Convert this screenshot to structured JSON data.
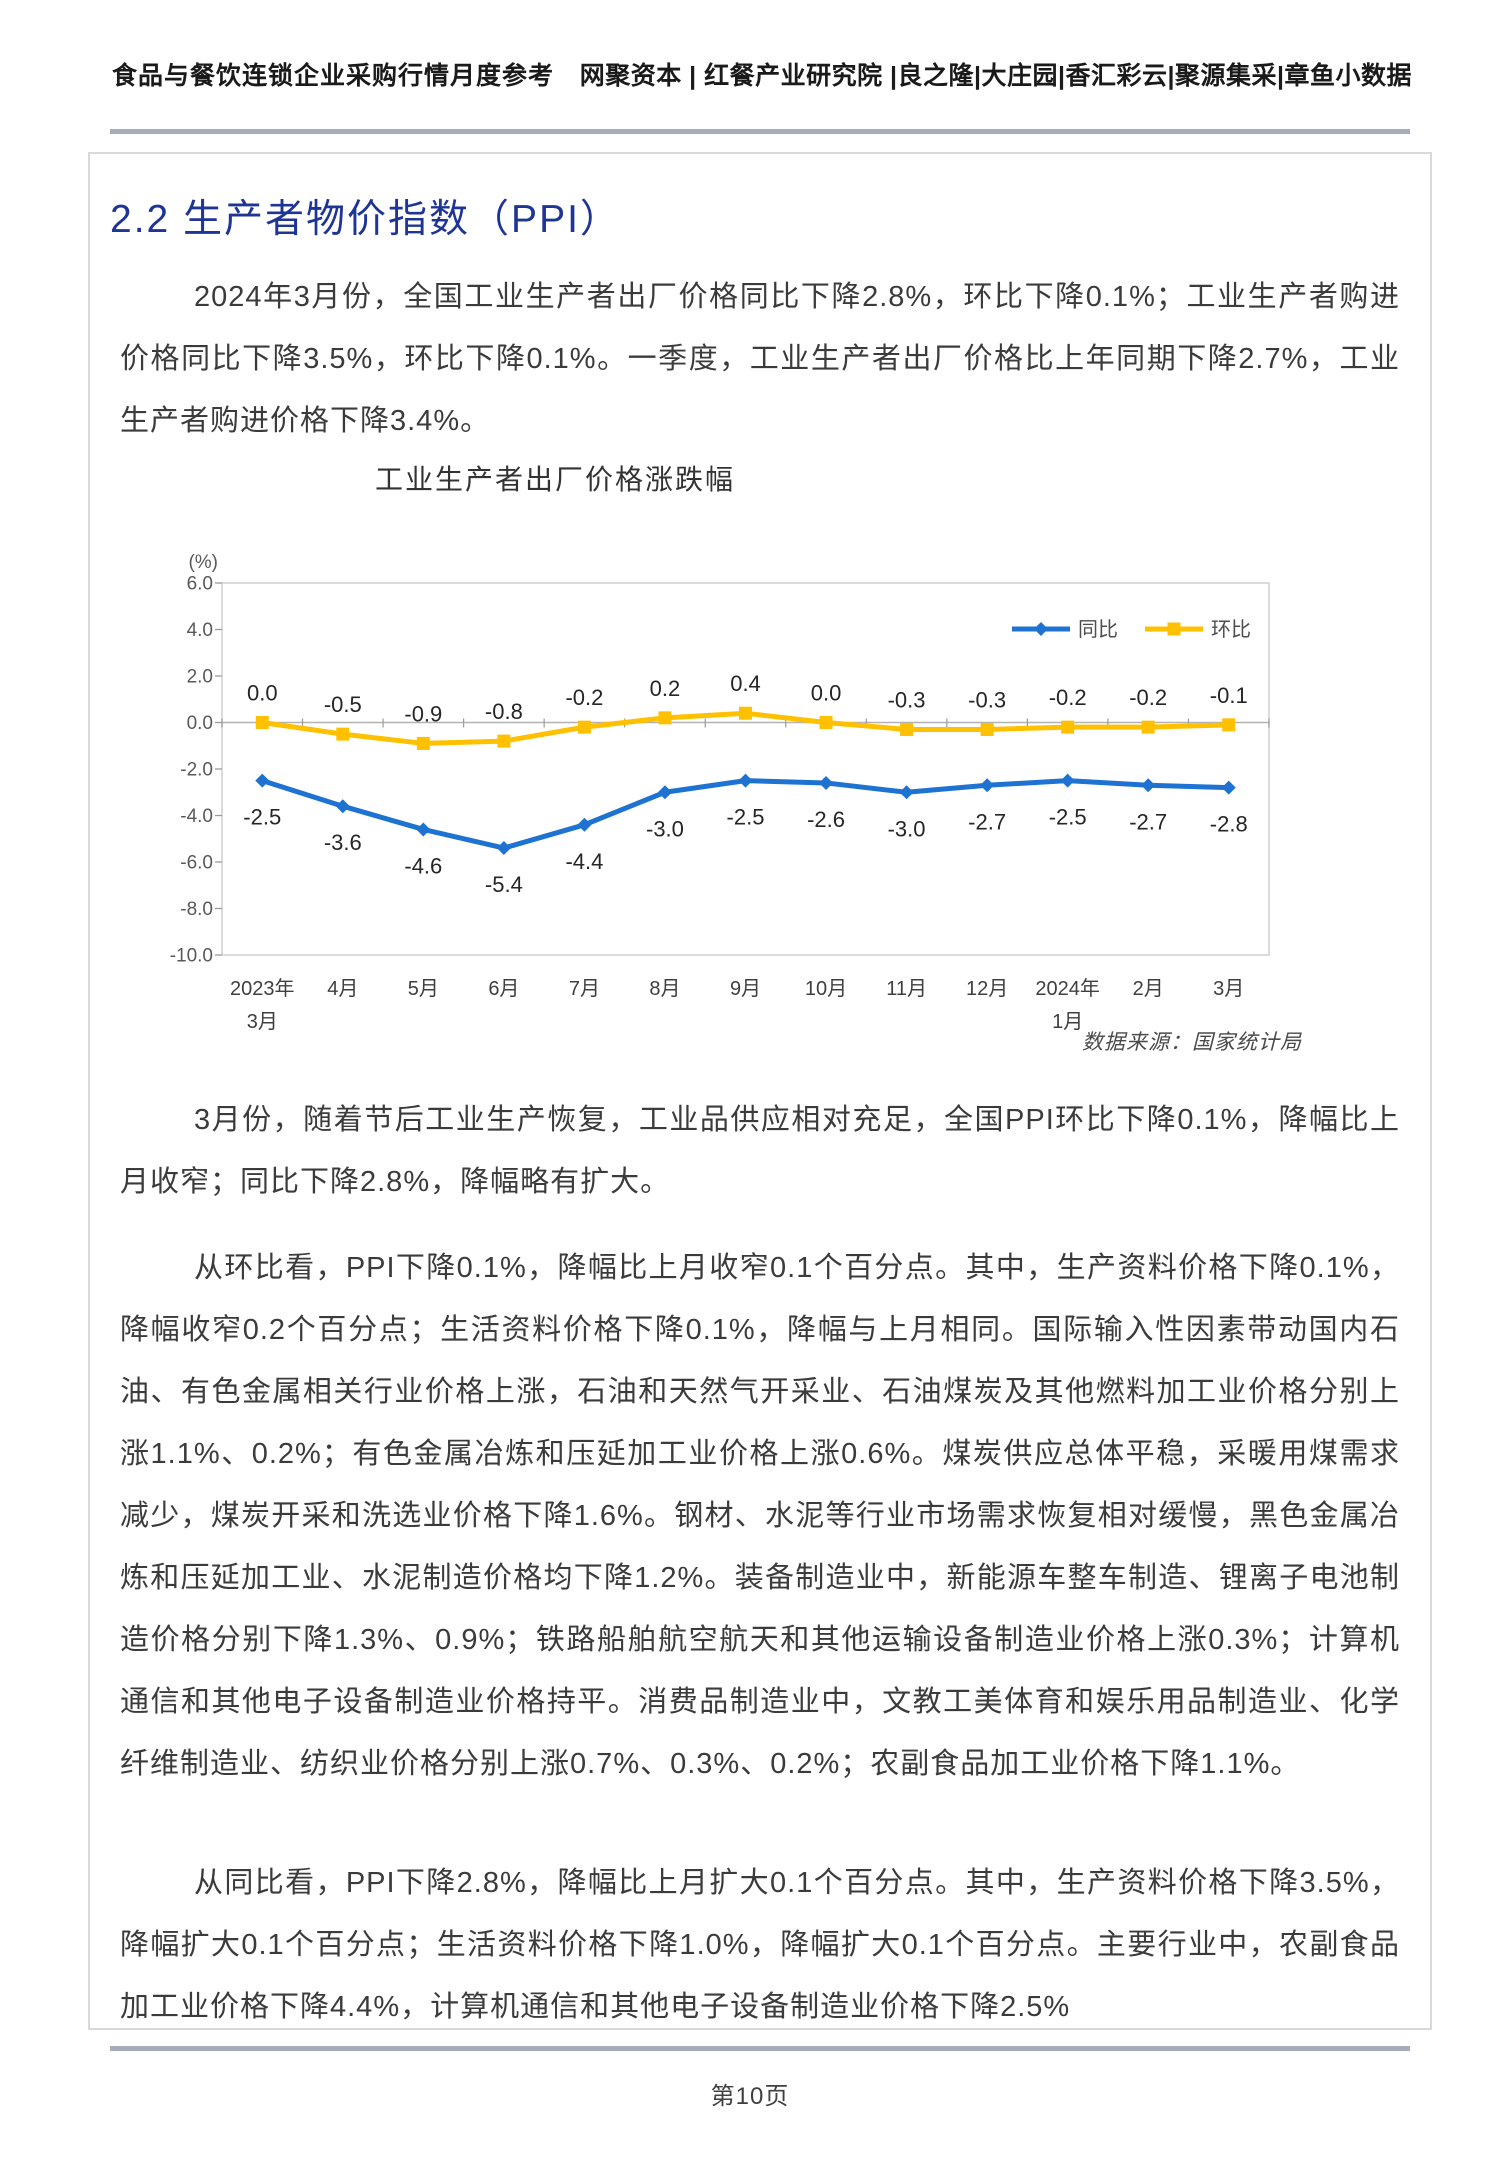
{
  "header": {
    "left_title": "食品与餐饮连锁企业采购行情月度参考",
    "right_sources": "网聚资本 | 红餐产业研究院 |良之隆|大庄园|香汇彩云|聚源集采|章鱼小数据"
  },
  "section": {
    "heading": "2.2 生产者物价指数（PPI）"
  },
  "paragraphs": {
    "p1": "2024年3月份，全国工业生产者出厂价格同比下降2.8%，环比下降0.1%；工业生产者购进价格同比下降3.5%，环比下降0.1%。一季度，工业生产者出厂价格比上年同期下降2.7%，工业生产者购进价格下降3.4%。",
    "p2": "3月份，随着节后工业生产恢复，工业品供应相对充足，全国PPI环比下降0.1%，降幅比上月收窄；同比下降2.8%，降幅略有扩大。",
    "p3": "从环比看，PPI下降0.1%，降幅比上月收窄0.1个百分点。其中，生产资料价格下降0.1%，降幅收窄0.2个百分点；生活资料价格下降0.1%，降幅与上月相同。国际输入性因素带动国内石油、有色金属相关行业价格上涨，石油和天然气开采业、石油煤炭及其他燃料加工业价格分别上涨1.1%、0.2%；有色金属冶炼和压延加工业价格上涨0.6%。煤炭供应总体平稳，采暖用煤需求减少，煤炭开采和洗选业价格下降1.6%。钢材、水泥等行业市场需求恢复相对缓慢，黑色金属冶炼和压延加工业、水泥制造价格均下降1.2%。装备制造业中，新能源车整车制造、锂离子电池制造价格分别下降1.3%、0.9%；铁路船舶航空航天和其他运输设备制造业价格上涨0.3%；计算机通信和其他电子设备制造业价格持平。消费品制造业中，文教工美体育和娱乐用品制造业、化学纤维制造业、纺织业价格分别上涨0.7%、0.3%、0.2%；农副食品加工业价格下降1.1%。",
    "p4": "从同比看，PPI下降2.8%，降幅比上月扩大0.1个百分点。其中，生产资料价格下降3.5%，降幅扩大0.1个百分点；生活资料价格下降1.0%，降幅扩大0.1个百分点。主要行业中，农副食品加工业价格下降4.4%，计算机通信和其他电子设备制造业价格下降2.5%"
  },
  "chart_data": {
    "type": "line",
    "title": "工业生产者出厂价格涨跌幅",
    "unit_label": "(%)",
    "source_note": "数据来源：国家统计局",
    "categories": [
      "2023年\n3月",
      "4月",
      "5月",
      "6月",
      "7月",
      "8月",
      "9月",
      "10月",
      "11月",
      "12月",
      "2024年\n1月",
      "2月",
      "3月"
    ],
    "series": [
      {
        "name": "同比",
        "color": "#1e73d2",
        "marker": "diamond",
        "label_position": "below",
        "values": [
          -2.5,
          -3.6,
          -4.6,
          -5.4,
          -4.4,
          -3.0,
          -2.5,
          -2.6,
          -3.0,
          -2.7,
          -2.5,
          -2.7,
          -2.8
        ]
      },
      {
        "name": "环比",
        "color": "#ffc000",
        "marker": "square",
        "label_position": "above",
        "values": [
          0.0,
          -0.5,
          -0.9,
          -0.8,
          -0.2,
          0.2,
          0.4,
          0.0,
          -0.3,
          -0.3,
          -0.2,
          -0.2,
          -0.1
        ]
      }
    ],
    "ylim": [
      -10,
      6
    ],
    "ytick_step": 2,
    "grid": false,
    "legend_position": "upper-right-inside"
  },
  "footer": {
    "page_label": "第10页"
  },
  "colors": {
    "heading_blue": "#1f3596",
    "series_yoy_blue": "#1e73d2",
    "series_mom_gold": "#ffc000",
    "rule_gray": "#a6acb8",
    "box_border_gray": "#d9d9d9"
  }
}
